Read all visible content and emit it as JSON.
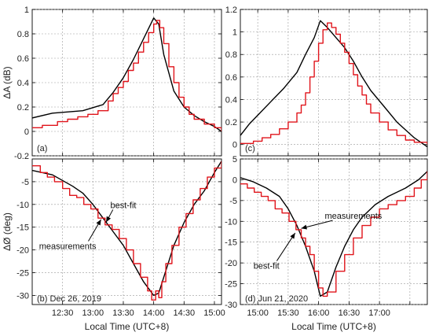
{
  "colors": {
    "measurements": "#000000",
    "best_fit": "#e0141b"
  },
  "xlabel": "Local Time (UTC+8)",
  "chart_data": [
    {
      "id": "a",
      "type": "line",
      "panel_label": "(a)",
      "ylabel": "ΔA (dB)",
      "xlim": [
        720,
        907
      ],
      "ylim": [
        -0.2,
        1.0
      ],
      "xticks": [
        750,
        780,
        810,
        840,
        870,
        900
      ],
      "xticklabels": [
        "12:30",
        "13:00",
        "13:30",
        "14:00",
        "14:30",
        "15:00"
      ],
      "yticks": [
        -0.2,
        0,
        0.2,
        0.4,
        0.6,
        0.8,
        1
      ],
      "yticklabels": [
        "-0.2",
        "0",
        "0.2",
        "0.4",
        "0.6",
        "0.8",
        "1"
      ],
      "grid": true,
      "series": [
        {
          "name": "measurements",
          "x": [
            720,
            740,
            770,
            790,
            800,
            810,
            820,
            830,
            840,
            845,
            850,
            860,
            870,
            880,
            890,
            900,
            907
          ],
          "y": [
            0.11,
            0.15,
            0.17,
            0.22,
            0.32,
            0.44,
            0.59,
            0.76,
            0.93,
            0.88,
            0.63,
            0.33,
            0.2,
            0.13,
            0.08,
            0.04,
            0.0
          ]
        },
        {
          "name": "best-fit",
          "step": true,
          "x": [
            720,
            730,
            745,
            755,
            765,
            775,
            785,
            795,
            800,
            805,
            810,
            815,
            820,
            825,
            830,
            835,
            840,
            843,
            846,
            850,
            855,
            860,
            865,
            870,
            875,
            880,
            890,
            900,
            907
          ],
          "y": [
            0.03,
            0.05,
            0.08,
            0.1,
            0.12,
            0.14,
            0.17,
            0.25,
            0.31,
            0.36,
            0.41,
            0.5,
            0.56,
            0.65,
            0.73,
            0.81,
            0.88,
            0.91,
            0.85,
            0.72,
            0.53,
            0.4,
            0.28,
            0.2,
            0.14,
            0.1,
            0.06,
            0.03,
            0.0
          ]
        }
      ]
    },
    {
      "id": "b",
      "type": "line",
      "panel_label": "(b) Dec 26, 2019",
      "ylabel": "ΔØ (deg)",
      "xlim": [
        720,
        907
      ],
      "ylim": [
        -32,
        0
      ],
      "xticks": [
        750,
        780,
        810,
        840,
        870,
        900
      ],
      "xticklabels": [
        "12:30",
        "13:00",
        "13:30",
        "14:00",
        "14:30",
        "15:00"
      ],
      "yticks": [
        -30,
        -25,
        -20,
        -15,
        -10,
        -5
      ],
      "yticklabels": [
        "-30",
        "-25",
        "-20",
        "-15",
        "-10",
        "-5"
      ],
      "grid": true,
      "annotations": [
        {
          "text": "best-fit",
          "text_x": 810,
          "text_y": -10.8,
          "arrow_to_x": 793,
          "arrow_to_y": -13.9
        },
        {
          "text": "measurements",
          "text_x": 755,
          "text_y": -19.8,
          "arrow_to_x": 788,
          "arrow_to_y": -13.3
        }
      ],
      "series": [
        {
          "name": "measurements",
          "x": [
            720,
            740,
            760,
            770,
            780,
            790,
            800,
            810,
            820,
            830,
            840,
            845,
            850,
            860,
            870,
            880,
            890,
            900,
            907
          ],
          "y": [
            -2.5,
            -3.5,
            -6,
            -7.5,
            -10,
            -13,
            -16,
            -19,
            -23,
            -27,
            -30,
            -29.5,
            -26,
            -19,
            -14,
            -10,
            -7,
            -3,
            -0.5
          ]
        },
        {
          "name": "best-fit",
          "step": true,
          "x": [
            720,
            728,
            735,
            742,
            750,
            757,
            764,
            771,
            778,
            785,
            792,
            799,
            806,
            813,
            820,
            827,
            834,
            838,
            842,
            845,
            848,
            852,
            858,
            865,
            872,
            879,
            886,
            893,
            900,
            907
          ],
          "y": [
            -1.5,
            -3,
            -4,
            -5,
            -6.5,
            -8,
            -8.5,
            -10,
            -11,
            -13,
            -14.5,
            -15.5,
            -17.5,
            -20,
            -23,
            -26,
            -29,
            -31,
            -29,
            -30.5,
            -27,
            -23,
            -19,
            -15,
            -12,
            -9,
            -6.5,
            -4,
            -2,
            -0.5
          ]
        }
      ]
    },
    {
      "id": "c",
      "type": "line",
      "panel_label": "(c)",
      "ylabel": "",
      "xlim": [
        880,
        1095
      ],
      "ylim": [
        -0.1,
        1.2
      ],
      "xticks": [
        900,
        935,
        970,
        1005,
        1040,
        1075
      ],
      "xticklabels": [
        "15:00",
        "15:30",
        "16:00",
        "16:30",
        "17:00",
        ""
      ],
      "yticks": [
        0,
        0.2,
        0.4,
        0.6,
        0.8,
        1,
        1.2
      ],
      "yticklabels": [
        "0",
        "0.2",
        "0.4",
        "0.6",
        "0.8",
        "1",
        "1.2"
      ],
      "grid": true,
      "series": [
        {
          "name": "measurements",
          "x": [
            880,
            890,
            900,
            915,
            930,
            945,
            955,
            965,
            972,
            980,
            990,
            1000,
            1010,
            1020,
            1030,
            1045,
            1060,
            1080,
            1095
          ],
          "y": [
            0.08,
            0.18,
            0.26,
            0.38,
            0.5,
            0.64,
            0.8,
            0.95,
            1.1,
            1.04,
            0.95,
            0.86,
            0.74,
            0.6,
            0.48,
            0.34,
            0.2,
            0.06,
            -0.02
          ]
        },
        {
          "name": "best-fit",
          "step": true,
          "x": [
            880,
            895,
            905,
            915,
            925,
            935,
            945,
            950,
            955,
            960,
            965,
            970,
            975,
            980,
            985,
            990,
            995,
            1000,
            1005,
            1010,
            1015,
            1020,
            1025,
            1030,
            1040,
            1050,
            1060,
            1070,
            1080,
            1095
          ],
          "y": [
            0.01,
            0.03,
            0.06,
            0.09,
            0.14,
            0.2,
            0.28,
            0.35,
            0.46,
            0.6,
            0.74,
            0.9,
            1.02,
            1.08,
            1.04,
            0.98,
            0.9,
            0.82,
            0.72,
            0.62,
            0.52,
            0.44,
            0.36,
            0.28,
            0.2,
            0.13,
            0.08,
            0.04,
            0.02,
            0.0
          ]
        }
      ]
    },
    {
      "id": "d",
      "type": "line",
      "panel_label": "(d) Jun 21, 2020",
      "ylabel": "",
      "xlim": [
        880,
        1095
      ],
      "ylim": [
        -30,
        5
      ],
      "xticks": [
        900,
        935,
        970,
        1005,
        1040,
        1075
      ],
      "xticklabels": [
        "15:00",
        "15:30",
        "16:00",
        "16:30",
        "17:00",
        ""
      ],
      "yticks": [
        -30,
        -25,
        -20,
        -15,
        -10,
        -5,
        0,
        5
      ],
      "yticklabels": [
        "-30",
        "-25",
        "-20",
        "-15",
        "-10",
        "-5",
        "0",
        "5"
      ],
      "grid": true,
      "annotations": [
        {
          "text": "measurements",
          "text_x": 1010,
          "text_y": -9.4,
          "arrow_to_x": 950,
          "arrow_to_y": -11.7
        },
        {
          "text": "best-fit",
          "text_x": 910,
          "text_y": -21.4,
          "arrow_to_x": 943,
          "arrow_to_y": -12.8
        }
      ],
      "series": [
        {
          "name": "measurements",
          "x": [
            880,
            895,
            910,
            925,
            935,
            945,
            955,
            965,
            972,
            980,
            990,
            1000,
            1010,
            1020,
            1035,
            1050,
            1070,
            1085,
            1095
          ],
          "y": [
            0.5,
            -0.5,
            -2,
            -4,
            -7,
            -11,
            -16,
            -22,
            -28,
            -27,
            -21,
            -16,
            -12,
            -9,
            -6,
            -4,
            -2,
            0,
            2
          ]
        },
        {
          "name": "best-fit",
          "step": true,
          "x": [
            880,
            888,
            896,
            904,
            912,
            920,
            928,
            936,
            944,
            950,
            955,
            960,
            965,
            970,
            975,
            980,
            990,
            1000,
            1010,
            1020,
            1030,
            1040,
            1050,
            1060,
            1070,
            1080,
            1088,
            1095
          ],
          "y": [
            -1,
            -2,
            -3,
            -4,
            -5,
            -7,
            -8,
            -10,
            -12,
            -14,
            -16,
            -18,
            -22,
            -26,
            -28,
            -27,
            -22,
            -18,
            -14,
            -11,
            -9,
            -7,
            -6,
            -5,
            -4,
            -2,
            0,
            2
          ]
        }
      ]
    }
  ]
}
